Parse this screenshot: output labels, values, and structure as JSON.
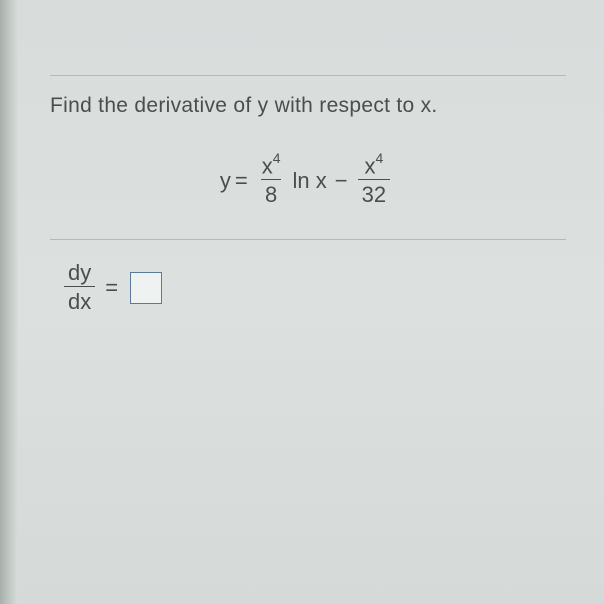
{
  "instruction": "Find the derivative of y with respect to x.",
  "equation": {
    "lhs": "y",
    "equals": "=",
    "term1": {
      "numerator_base": "x",
      "numerator_exp": "4",
      "denominator": "8"
    },
    "ln_text": "ln x",
    "minus": "−",
    "term2": {
      "numerator_base": "x",
      "numerator_exp": "4",
      "denominator": "32"
    }
  },
  "answer": {
    "frac_num": "dy",
    "frac_den": "dx",
    "equals": "="
  },
  "style": {
    "background_color": "#d8dcdb",
    "text_color": "#4a4e4c",
    "divider_color": "#b5bab7",
    "box_border_color": "#5a7a9a",
    "box_background": "#eef2f0",
    "instruction_fontsize": 21,
    "equation_fontsize": 22,
    "superscript_fontsize": 14
  }
}
